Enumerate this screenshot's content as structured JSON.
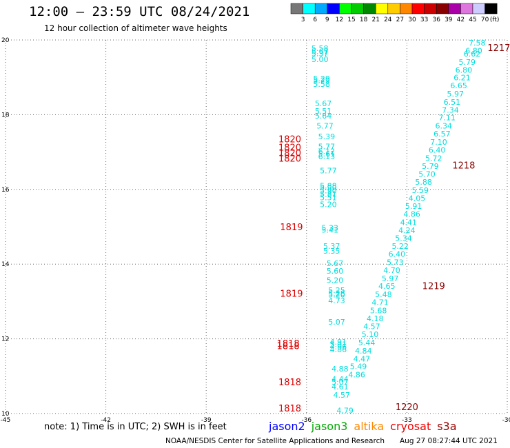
{
  "title": "12:00 – 23:59 UTC 08/24/2021",
  "subtitle": "12 hour collection of altimeter wave heights",
  "note": "note: 1) Time is in UTC; 2) SWH is in feet",
  "credit": "NOAA/NESDIS Center for Satellite Applications and Research",
  "timestamp": "Aug 27 08:27:44 UTC 2021",
  "satellites": [
    {
      "name": "jason2",
      "color": "#0000ff"
    },
    {
      "name": "jason3",
      "color": "#00aa00"
    },
    {
      "name": "altika",
      "color": "#ff8800"
    },
    {
      "name": "cryosat",
      "color": "#ee0000"
    },
    {
      "name": "s3a",
      "color": "#990000"
    }
  ],
  "colorbar": {
    "unit": "(ft)",
    "labels": [
      "3",
      "6",
      "9",
      "12",
      "15",
      "18",
      "21",
      "24",
      "27",
      "30",
      "33",
      "36",
      "39",
      "42",
      "45",
      "70"
    ],
    "colors": [
      "#777777",
      "#00ffff",
      "#00aaff",
      "#0000ff",
      "#00ff00",
      "#00cc00",
      "#008800",
      "#ffff00",
      "#ffcc00",
      "#ff8800",
      "#ff0000",
      "#cc0000",
      "#880000",
      "#aa00aa",
      "#dd77dd",
      "#ccccff",
      "#000000"
    ]
  },
  "chart_data": {
    "type": "scatter",
    "xlim": [
      -45,
      -30
    ],
    "ylim": [
      10,
      20
    ],
    "x_ticks": [
      "-45",
      "-42",
      "-39",
      "-36",
      "-33",
      "-30"
    ],
    "y_ticks": [
      "10",
      "12",
      "14",
      "16",
      "18",
      "20"
    ],
    "grid": true,
    "value_color": "#00dddd",
    "series": [
      {
        "points": [
          {
            "x": -35.6,
            "y": 19.78,
            "label": "5.58"
          },
          {
            "x": -35.6,
            "y": 19.7,
            "label": "5.67"
          },
          {
            "x": -35.6,
            "y": 19.64,
            "label": "5.37"
          },
          {
            "x": -35.6,
            "y": 19.48,
            "label": "5.00"
          },
          {
            "x": -35.55,
            "y": 18.97,
            "label": "5.29"
          },
          {
            "x": -35.55,
            "y": 18.92,
            "label": "5.29"
          },
          {
            "x": -35.55,
            "y": 18.82,
            "label": "5.58"
          },
          {
            "x": -35.5,
            "y": 18.3,
            "label": "5.67"
          },
          {
            "x": -35.5,
            "y": 18.1,
            "label": "5.51"
          },
          {
            "x": -35.5,
            "y": 17.97,
            "label": "5.64"
          },
          {
            "x": -35.45,
            "y": 17.7,
            "label": "5.77"
          },
          {
            "x": -35.4,
            "y": 17.42,
            "label": "5.39"
          },
          {
            "x": -35.4,
            "y": 17.15,
            "label": "5.77"
          },
          {
            "x": -35.4,
            "y": 17.02,
            "label": "6.12"
          },
          {
            "x": -35.4,
            "y": 16.96,
            "label": "5.61"
          },
          {
            "x": -35.4,
            "y": 16.88,
            "label": "6.13"
          },
          {
            "x": -35.35,
            "y": 16.5,
            "label": "5.77"
          },
          {
            "x": -35.35,
            "y": 16.1,
            "label": "5.88"
          },
          {
            "x": -35.35,
            "y": 16.05,
            "label": "5.90"
          },
          {
            "x": -35.35,
            "y": 15.97,
            "label": "5.90"
          },
          {
            "x": -35.35,
            "y": 15.88,
            "label": "5.81"
          },
          {
            "x": -35.35,
            "y": 15.78,
            "label": "5.51"
          },
          {
            "x": -35.35,
            "y": 15.6,
            "label": "5.20"
          },
          {
            "x": -35.3,
            "y": 14.97,
            "label": "5.33"
          },
          {
            "x": -35.3,
            "y": 14.92,
            "label": "5.41"
          },
          {
            "x": -35.25,
            "y": 14.48,
            "label": "5.37"
          },
          {
            "x": -35.25,
            "y": 14.35,
            "label": "5.35"
          },
          {
            "x": -35.15,
            "y": 14.02,
            "label": "5.67"
          },
          {
            "x": -35.15,
            "y": 13.82,
            "label": "5.60"
          },
          {
            "x": -35.15,
            "y": 13.57,
            "label": "5.20"
          },
          {
            "x": -35.1,
            "y": 13.3,
            "label": "5.25"
          },
          {
            "x": -35.1,
            "y": 13.22,
            "label": "5.28"
          },
          {
            "x": -35.1,
            "y": 13.18,
            "label": "5.20"
          },
          {
            "x": -35.1,
            "y": 13.03,
            "label": "4.73"
          },
          {
            "x": -35.1,
            "y": 12.45,
            "label": "5.07"
          },
          {
            "x": -35.05,
            "y": 11.92,
            "label": "4.91"
          },
          {
            "x": -35.05,
            "y": 11.85,
            "label": "5.01"
          },
          {
            "x": -35.05,
            "y": 11.79,
            "label": "4.96"
          },
          {
            "x": -35.05,
            "y": 11.72,
            "label": "4.86"
          },
          {
            "x": -35.0,
            "y": 11.2,
            "label": "4.88"
          },
          {
            "x": -35.0,
            "y": 10.92,
            "label": "4.44"
          },
          {
            "x": -35.0,
            "y": 10.85,
            "label": "5.07"
          },
          {
            "x": -35.0,
            "y": 10.72,
            "label": "4.61"
          },
          {
            "x": -34.95,
            "y": 10.5,
            "label": "4.57"
          },
          {
            "x": -34.85,
            "y": 10.08,
            "label": "4.79"
          }
        ]
      },
      {
        "points": [
          {
            "x": -30.9,
            "y": 19.93,
            "label": "7.58"
          },
          {
            "x": -31.0,
            "y": 19.71,
            "label": "6.80"
          },
          {
            "x": -31.05,
            "y": 19.63,
            "label": "6.62"
          },
          {
            "x": -31.2,
            "y": 19.41,
            "label": "5.79"
          },
          {
            "x": -31.3,
            "y": 19.2,
            "label": "6.80"
          },
          {
            "x": -31.35,
            "y": 18.99,
            "label": "6.21"
          },
          {
            "x": -31.45,
            "y": 18.78,
            "label": "6.65"
          },
          {
            "x": -31.55,
            "y": 18.56,
            "label": "5.97"
          },
          {
            "x": -31.65,
            "y": 18.34,
            "label": "6.51"
          },
          {
            "x": -31.7,
            "y": 18.13,
            "label": "7.34"
          },
          {
            "x": -31.8,
            "y": 17.92,
            "label": "7.11"
          },
          {
            "x": -31.9,
            "y": 17.7,
            "label": "6.34"
          },
          {
            "x": -31.95,
            "y": 17.49,
            "label": "6.57"
          },
          {
            "x": -32.05,
            "y": 17.27,
            "label": "7.10"
          },
          {
            "x": -32.1,
            "y": 17.06,
            "label": "6.40"
          },
          {
            "x": -32.2,
            "y": 16.84,
            "label": "5.72"
          },
          {
            "x": -32.3,
            "y": 16.62,
            "label": "5.79"
          },
          {
            "x": -32.4,
            "y": 16.41,
            "label": "5.70"
          },
          {
            "x": -32.5,
            "y": 16.2,
            "label": "5.88"
          },
          {
            "x": -32.6,
            "y": 15.98,
            "label": "5.59"
          },
          {
            "x": -32.7,
            "y": 15.77,
            "label": "4.05"
          },
          {
            "x": -32.8,
            "y": 15.55,
            "label": "5.91"
          },
          {
            "x": -32.85,
            "y": 15.34,
            "label": "4.86"
          },
          {
            "x": -32.95,
            "y": 15.12,
            "label": "4.41"
          },
          {
            "x": -33.0,
            "y": 14.91,
            "label": "4.24"
          },
          {
            "x": -33.1,
            "y": 14.7,
            "label": "5.34"
          },
          {
            "x": -33.2,
            "y": 14.48,
            "label": "5.22"
          },
          {
            "x": -33.3,
            "y": 14.27,
            "label": "6.40"
          },
          {
            "x": -33.35,
            "y": 14.05,
            "label": "5.73"
          },
          {
            "x": -33.45,
            "y": 13.84,
            "label": "4.70"
          },
          {
            "x": -33.5,
            "y": 13.62,
            "label": "5.97"
          },
          {
            "x": -33.6,
            "y": 13.41,
            "label": "4.65"
          },
          {
            "x": -33.7,
            "y": 13.19,
            "label": "5.48"
          },
          {
            "x": -33.8,
            "y": 12.98,
            "label": "4.71"
          },
          {
            "x": -33.85,
            "y": 12.76,
            "label": "5.68"
          },
          {
            "x": -33.95,
            "y": 12.55,
            "label": "4.18"
          },
          {
            "x": -34.05,
            "y": 12.33,
            "label": "4.57"
          },
          {
            "x": -34.1,
            "y": 12.12,
            "label": "5.10"
          },
          {
            "x": -34.2,
            "y": 11.9,
            "label": "5.44"
          },
          {
            "x": -34.3,
            "y": 11.68,
            "label": "4.84"
          },
          {
            "x": -34.35,
            "y": 11.47,
            "label": "4.47"
          },
          {
            "x": -34.45,
            "y": 11.26,
            "label": "5.49"
          },
          {
            "x": -34.5,
            "y": 11.04,
            "label": "4.86"
          }
        ]
      }
    ],
    "time_labels": [
      {
        "x": -36.5,
        "y": 17.35,
        "label": "1820",
        "color": "#dd0000"
      },
      {
        "x": -36.5,
        "y": 17.13,
        "label": "1820",
        "color": "#dd0000"
      },
      {
        "x": -36.5,
        "y": 16.98,
        "label": "1820",
        "color": "#dd0000"
      },
      {
        "x": -36.5,
        "y": 16.84,
        "label": "1820",
        "color": "#dd0000"
      },
      {
        "x": -36.45,
        "y": 15.0,
        "label": "1819",
        "color": "#dd0000"
      },
      {
        "x": -36.45,
        "y": 13.22,
        "label": "1819",
        "color": "#dd0000"
      },
      {
        "x": -36.55,
        "y": 11.88,
        "label": "1818",
        "color": "#dd0000"
      },
      {
        "x": -36.55,
        "y": 11.82,
        "label": "1818",
        "color": "#dd0000"
      },
      {
        "x": -36.5,
        "y": 10.85,
        "label": "1818",
        "color": "#dd0000"
      },
      {
        "x": -36.5,
        "y": 10.15,
        "label": "1818",
        "color": "#dd0000"
      },
      {
        "x": -30.25,
        "y": 19.8,
        "label": "1217",
        "color": "#880000"
      },
      {
        "x": -31.3,
        "y": 16.65,
        "label": "1218",
        "color": "#880000"
      },
      {
        "x": -32.2,
        "y": 13.42,
        "label": "1219",
        "color": "#880000"
      },
      {
        "x": -33.0,
        "y": 10.18,
        "label": "1220",
        "color": "#880000"
      }
    ]
  }
}
